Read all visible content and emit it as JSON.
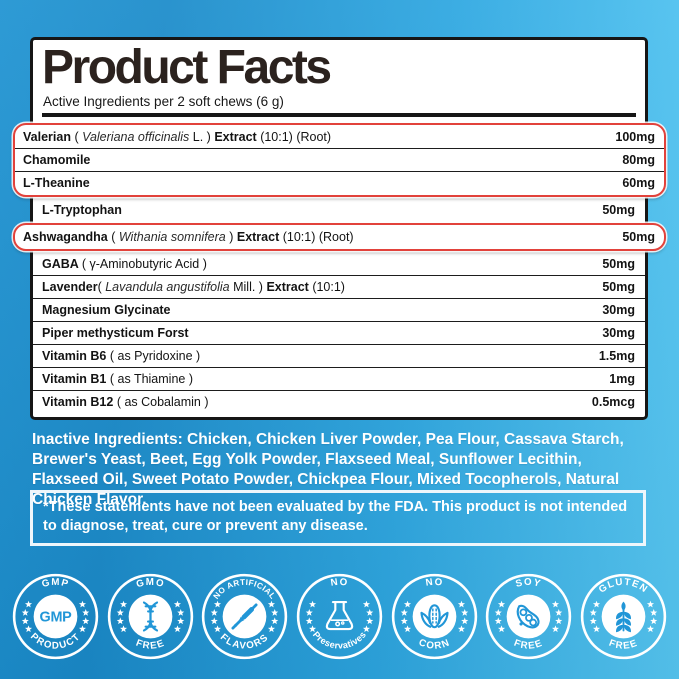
{
  "label": {
    "title": "Product Facts",
    "subtitle": "Active Ingredients per 2 soft chews (6 g)"
  },
  "ingredient_groups": [
    {
      "highlight": true,
      "rows": [
        {
          "parts": [
            {
              "t": "Valerian ",
              "s": "b"
            },
            {
              "t": "( ",
              "s": "r"
            },
            {
              "t": "Valeriana officinalis",
              "s": "i"
            },
            {
              "t": " L. ) ",
              "s": "r"
            },
            {
              "t": "Extract",
              "s": "b"
            },
            {
              "t": " (10:1) (Root)",
              "s": "r"
            }
          ],
          "amount": "100mg"
        },
        {
          "parts": [
            {
              "t": "Chamomile",
              "s": "b"
            }
          ],
          "amount": "80mg"
        },
        {
          "parts": [
            {
              "t": "L-Theanine",
              "s": "b"
            }
          ],
          "amount": "60mg"
        }
      ]
    },
    {
      "highlight": false,
      "rows": [
        {
          "parts": [
            {
              "t": "L-Tryptophan",
              "s": "b"
            }
          ],
          "amount": "50mg"
        }
      ]
    },
    {
      "highlight": true,
      "rows": [
        {
          "parts": [
            {
              "t": "Ashwagandha ",
              "s": "b"
            },
            {
              "t": "( ",
              "s": "r"
            },
            {
              "t": "Withania somnifera",
              "s": "i"
            },
            {
              "t": " ) ",
              "s": "r"
            },
            {
              "t": "Extract",
              "s": "b"
            },
            {
              "t": " (10:1) (Root)",
              "s": "r"
            }
          ],
          "amount": "50mg",
          "strong": true
        }
      ]
    },
    {
      "highlight": false,
      "rows": [
        {
          "parts": [
            {
              "t": "GABA ",
              "s": "b"
            },
            {
              "t": "( γ-Aminobutyric Acid )",
              "s": "r"
            }
          ],
          "amount": "50mg"
        },
        {
          "parts": [
            {
              "t": "Lavender",
              "s": "b"
            },
            {
              "t": "( ",
              "s": "r"
            },
            {
              "t": "Lavandula angustifolia",
              "s": "i"
            },
            {
              "t": " Mill. ) ",
              "s": "r"
            },
            {
              "t": "Extract",
              "s": "b"
            },
            {
              "t": " (10:1)",
              "s": "r"
            }
          ],
          "amount": "50mg"
        },
        {
          "parts": [
            {
              "t": "Magnesium Glycinate",
              "s": "b"
            }
          ],
          "amount": "30mg"
        },
        {
          "parts": [
            {
              "t": "Piper methysticum Forst",
              "s": "b"
            }
          ],
          "amount": "30mg"
        },
        {
          "parts": [
            {
              "t": "Vitamin B6 ",
              "s": "b"
            },
            {
              "t": "( as Pyridoxine )",
              "s": "r"
            }
          ],
          "amount": "1.5mg"
        },
        {
          "parts": [
            {
              "t": "Vitamin B1 ",
              "s": "b"
            },
            {
              "t": "( as Thiamine )",
              "s": "r"
            }
          ],
          "amount": "1mg"
        },
        {
          "parts": [
            {
              "t": "Vitamin B12 ",
              "s": "b"
            },
            {
              "t": "( as Cobalamin )",
              "s": "r"
            }
          ],
          "amount": "0.5mcg"
        }
      ]
    }
  ],
  "inactive": "Inactive Ingredients: Chicken, Chicken Liver Powder, Pea Flour, Cassava Starch, Brewer's Yeast, Beet, Egg Yolk Powder, Flaxseed Meal, Sunflower Lecithin, Flaxseed Oil, Sweet Potato Powder, Chickpea Flour, Mixed Tocopherols, Natural Chicken Flavor.",
  "disclaimer": "*These statements have not been evaluated by the FDA. This product is not intended to diagnose, treat, cure or prevent any disease.",
  "badges": [
    {
      "top": "GMP",
      "bottom": "PRODUCT",
      "center": "GMP",
      "icon": "gmp-seal"
    },
    {
      "top": "GMO",
      "bottom": "FREE",
      "icon": "dna"
    },
    {
      "top": "NO ARTIFICIAL",
      "bottom": "FLAVORS",
      "icon": "crossed-pen"
    },
    {
      "top": "NO",
      "bottom": "Preservatives",
      "icon": "flask"
    },
    {
      "top": "NO",
      "bottom": "CORN",
      "icon": "corn"
    },
    {
      "top": "SOY",
      "bottom": "FREE",
      "icon": "soybean"
    },
    {
      "top": "GLUTEN",
      "bottom": "FREE",
      "icon": "wheat"
    }
  ],
  "colors": {
    "highlight_red": "#e2423b",
    "panel_border": "#161616",
    "badge_white": "#ffffff",
    "icon_blue": "#2196d7",
    "bg_left": "#1a8bca",
    "bg_right": "#57c9f4"
  }
}
